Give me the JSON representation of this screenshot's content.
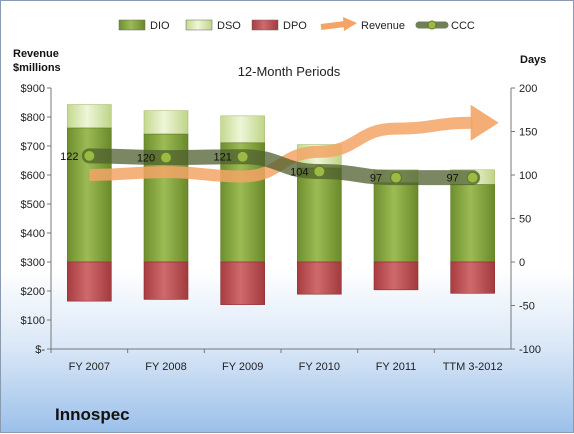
{
  "company": "Innospec",
  "chart_data": {
    "type": "bar",
    "title": "12-Month Periods",
    "ylabel_left": [
      "Revenue",
      "$millions"
    ],
    "ylabel_right": "Days",
    "categories": [
      "FY 2007",
      "FY 2008",
      "FY 2009",
      "FY 2010",
      "FY 2011",
      "TTM 3-2012"
    ],
    "left_axis": {
      "min": 0,
      "max": 900,
      "step": 100,
      "tick_labels": [
        "$-",
        "$100",
        "$200",
        "$300",
        "$400",
        "$500",
        "$600",
        "$700",
        "$800",
        "$900"
      ]
    },
    "right_axis": {
      "min": -100,
      "max": 200,
      "step": 50,
      "tick_labels": [
        "-100",
        "-50",
        "0",
        "50",
        "100",
        "150",
        "200"
      ]
    },
    "legend": {
      "position": "top",
      "entries": [
        {
          "name": "DIO",
          "kind": "bar",
          "color": "#7f9f3a"
        },
        {
          "name": "DSO",
          "kind": "bar",
          "color": "#d3e6a8"
        },
        {
          "name": "DPO",
          "kind": "bar",
          "color": "#b9484c"
        },
        {
          "name": "Revenue",
          "kind": "arrow",
          "color": "#f3a466"
        },
        {
          "name": "CCC",
          "kind": "line",
          "color": "#4e5f2e"
        }
      ]
    },
    "series": [
      {
        "name": "DIO",
        "values": [
          154,
          147,
          137,
          108,
          91,
          89
        ]
      },
      {
        "name": "DSO",
        "values": [
          27,
          27,
          31,
          27,
          15,
          17
        ]
      },
      {
        "name": "DPO",
        "values": [
          -45,
          -43,
          -49,
          -37,
          -32,
          -36
        ]
      },
      {
        "name": "CCC",
        "values": [
          122,
          120,
          121,
          104,
          97,
          97
        ]
      }
    ],
    "revenue_trend": [
      {
        "x": 0,
        "y": 600
      },
      {
        "x": 1,
        "y": 610
      },
      {
        "x": 2,
        "y": 595
      },
      {
        "x": 3,
        "y": 680
      },
      {
        "x": 4,
        "y": 760
      },
      {
        "x": 5,
        "y": 780
      }
    ],
    "gridlines": false
  }
}
